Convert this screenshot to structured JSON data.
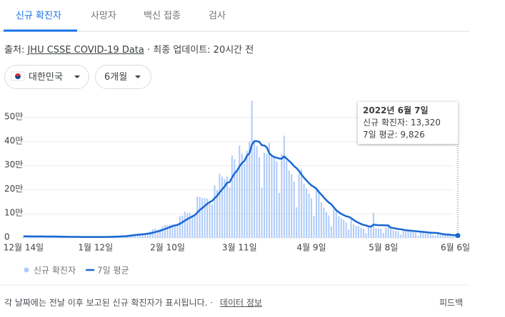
{
  "ui": {
    "tabs": [
      "신규 확진자",
      "사망자",
      "백신 접종",
      "검사"
    ],
    "source_prefix": "출처:",
    "source_link": "JHU CSSE COVID-19 Data",
    "updated": "· 최종 업데이트: 20시간 전",
    "region": "대한민국",
    "period": "6개월",
    "tooltip": {
      "date": "2022년 6월 7일",
      "line1": "신규 확진자: 13,320",
      "line2": "7일 평균: 9,826"
    },
    "footnote": "각 날짜에는 전날 이후 보고된 신규 확진자가 표시됩니다. ·",
    "data_info": "데이터 정보",
    "feedback": "피드백"
  },
  "chart_data": {
    "type": "bar-line",
    "categories": [
      "12월 14일",
      null,
      null,
      null,
      null,
      null,
      null,
      null,
      null,
      null,
      null,
      null,
      null,
      null,
      null,
      null,
      null,
      null,
      null,
      null,
      null,
      null,
      null,
      null,
      null,
      null,
      null,
      null,
      null,
      "1월 12일",
      null,
      null,
      null,
      null,
      null,
      null,
      null,
      null,
      null,
      null,
      null,
      null,
      null,
      null,
      null,
      null,
      null,
      null,
      null,
      null,
      null,
      null,
      null,
      null,
      null,
      null,
      null,
      null,
      "2월 10일",
      null,
      null,
      null,
      null,
      null,
      null,
      null,
      null,
      null,
      null,
      null,
      null,
      null,
      null,
      null,
      null,
      null,
      null,
      null,
      null,
      null,
      null,
      null,
      null,
      null,
      null,
      null,
      null,
      "3월 11일",
      null,
      null,
      null,
      null,
      null,
      null,
      null,
      null,
      null,
      null,
      null,
      null,
      null,
      null,
      null,
      null,
      null,
      null,
      null,
      null,
      null,
      null,
      null,
      null,
      null,
      null,
      null,
      null,
      "4월 9일",
      null,
      null,
      null,
      null,
      null,
      null,
      null,
      null,
      null,
      null,
      null,
      null,
      null,
      null,
      null,
      null,
      null,
      null,
      null,
      null,
      null,
      null,
      null,
      null,
      null,
      null,
      null,
      null,
      "5월 8일",
      null,
      null,
      null,
      null,
      null,
      null,
      null,
      null,
      null,
      null,
      null,
      null,
      null,
      null,
      null,
      null,
      null,
      null,
      null,
      null,
      null,
      null,
      null,
      null,
      null,
      null,
      null,
      null,
      "6월 6일",
      null
    ],
    "series": [
      {
        "name": "신규 확진자",
        "kind": "bar",
        "color": "#aecbfa",
        "values": [
          7850,
          7622,
          7435,
          7314,
          6236,
          5318,
          5202,
          7456,
          6919,
          6233,
          5842,
          5419,
          4207,
          3865,
          5409,
          5037,
          4875,
          5035,
          4416,
          3833,
          3129,
          4443,
          4126,
          4444,
          4126,
          3510,
          3376,
          3005,
          4388,
          4385,
          4542,
          4167,
          4194,
          3859,
          4070,
          5805,
          6603,
          6769,
          7009,
          7630,
          7513,
          8571,
          13012,
          14518,
          16096,
          17542,
          17528,
          17079,
          18342,
          20270,
          22907,
          27443,
          36345,
          38691,
          35286,
          38691,
          49567,
          54122,
          53926,
          54941,
          56431,
          53926,
          57177,
          90443,
          93135,
          109831,
          102211,
          104829,
          95362,
          99573,
          171452,
          170016,
          165890,
          166209,
          163565,
          143921,
          139626,
          219241,
          198803,
          266853,
          254327,
          243628,
          254327,
          210716,
          342446,
          327549,
          282987,
          383665,
          350190,
          309790,
          362338,
          400741,
          570000,
          407017,
          381454,
          334708,
          209169,
          353980,
          350000,
          395598,
          339514,
          335580,
          318130,
          187213,
          347554,
          424641,
          320743,
          280273,
          264171,
          234301,
          127190,
          266135,
          285000,
          224820,
          205333,
          185566,
          164481,
          90928,
          210755,
          195419,
          148443,
          125846,
          107916,
          93001,
          47743,
          118504,
          111319,
          90867,
          81058,
          75449,
          64725,
          34370,
          76787,
          57464,
          50568,
          49064,
          42296,
          37771,
          20084,
          51131,
          49916,
          105000,
          40064,
          39600,
          38000,
          20601,
          43925,
          49933,
          35906,
          32451,
          29581,
          27513,
          13296,
          29581,
          32451,
          28130,
          25125,
          23956,
          22335,
          9975,
          23956,
          25125,
          22335,
          19296,
          17190,
          13358,
          10059,
          17190,
          13358,
          12542,
          9088,
          18799,
          12051,
          8441,
          5022,
          13320
        ]
      },
      {
        "name": "7일 평균",
        "kind": "line",
        "color": "#1967d2",
        "values": [
          6600,
          6550,
          6500,
          6450,
          6400,
          6350,
          6300,
          6250,
          6200,
          6100,
          6000,
          5900,
          5750,
          5600,
          5400,
          5200,
          5000,
          4800,
          4650,
          4550,
          4450,
          4400,
          4300,
          4200,
          4100,
          4000,
          3950,
          3950,
          3950,
          3950,
          4000,
          4000,
          4100,
          4200,
          4250,
          4500,
          4800,
          5200,
          5600,
          6000,
          6600,
          7100,
          8100,
          9300,
          10600,
          12000,
          13200,
          14200,
          15200,
          16400,
          17600,
          19200,
          21200,
          24200,
          26800,
          29500,
          33500,
          37000,
          41000,
          45000,
          49000,
          52000,
          54200,
          59000,
          65000,
          72000,
          78000,
          84000,
          89000,
          95000,
          105000,
          116000,
          124000,
          133000,
          142000,
          149000,
          154000,
          165000,
          175000,
          189000,
          202000,
          213000,
          229000,
          232000,
          250000,
          268000,
          279000,
          297000,
          311000,
          320000,
          341000,
          352000,
          387000,
          402000,
          402000,
          399000,
          385000,
          384000,
          377000,
          352000,
          342000,
          336000,
          333000,
          330000,
          329000,
          339000,
          329000,
          320000,
          310000,
          298000,
          290000,
          278000,
          263000,
          250000,
          239000,
          228000,
          218000,
          212000,
          204000,
          191000,
          180000,
          168000,
          157000,
          147000,
          140000,
          127000,
          115000,
          107000,
          100000,
          95000,
          90000,
          88000,
          82000,
          75000,
          68000,
          63000,
          58000,
          54000,
          52000,
          48000,
          47000,
          55000,
          54000,
          53000,
          53000,
          53000,
          52000,
          52000,
          42000,
          41000,
          39000,
          37000,
          36000,
          34000,
          32000,
          31000,
          30000,
          29000,
          28000,
          27000,
          26000,
          25000,
          24000,
          23000,
          22000,
          21000,
          21000,
          20000,
          18000,
          16000,
          14000,
          14000,
          13000,
          12000,
          11000,
          9826
        ]
      }
    ],
    "ylim": [
      0,
      580000
    ],
    "yticks": [
      0,
      {
        "value": 100000,
        "label": "10만"
      },
      {
        "value": 200000,
        "label": "20만"
      },
      {
        "value": 300000,
        "label": "30만"
      },
      {
        "value": 400000,
        "label": "40만"
      },
      {
        "value": 500000,
        "label": "50만"
      }
    ],
    "grid": true
  }
}
